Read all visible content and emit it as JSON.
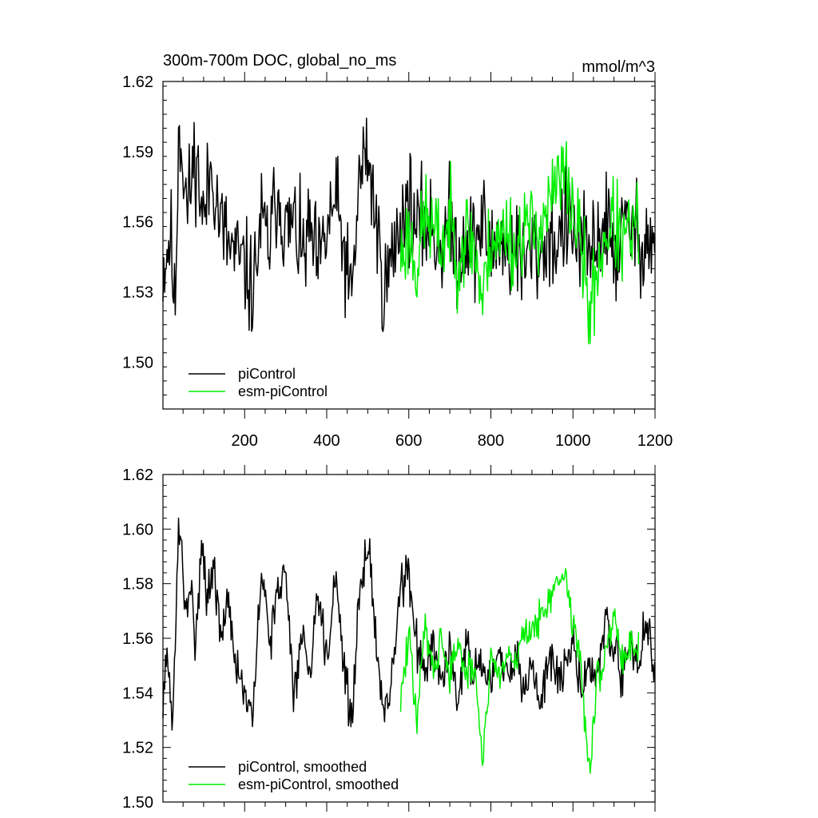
{
  "chart_data": [
    {
      "type": "line",
      "title": "300m-700m DOC, global_no_ms",
      "units": "mmol/m^3",
      "xlim": [
        1,
        1200
      ],
      "ylim": [
        1.48,
        1.62
      ],
      "xticks": [
        200,
        400,
        600,
        800,
        1000,
        1200
      ],
      "yticks": [
        1.5,
        1.53,
        1.56,
        1.59,
        1.62
      ],
      "ytick_labels": [
        "1.50",
        "1.53",
        "1.56",
        "1.59",
        "1.62"
      ],
      "show_xtick_labels": true,
      "legend": "bottom-left",
      "grid": false,
      "series": [
        {
          "name": "piControl",
          "color": "#000000",
          "x_start": 1,
          "x_end": 1200,
          "waypoints": [
            [
              1,
              1.54
            ],
            [
              20,
              1.555
            ],
            [
              30,
              1.518
            ],
            [
              40,
              1.605
            ],
            [
              50,
              1.585
            ],
            [
              60,
              1.565
            ],
            [
              80,
              1.59
            ],
            [
              100,
              1.56
            ],
            [
              120,
              1.585
            ],
            [
              140,
              1.56
            ],
            [
              160,
              1.55
            ],
            [
              180,
              1.545
            ],
            [
              200,
              1.54
            ],
            [
              220,
              1.53
            ],
            [
              240,
              1.56
            ],
            [
              260,
              1.55
            ],
            [
              280,
              1.575
            ],
            [
              300,
              1.555
            ],
            [
              320,
              1.56
            ],
            [
              340,
              1.545
            ],
            [
              360,
              1.555
            ],
            [
              380,
              1.54
            ],
            [
              400,
              1.555
            ],
            [
              420,
              1.57
            ],
            [
              440,
              1.55
            ],
            [
              460,
              1.525
            ],
            [
              480,
              1.58
            ],
            [
              500,
              1.59
            ],
            [
              520,
              1.56
            ],
            [
              540,
              1.53
            ],
            [
              560,
              1.545
            ],
            [
              580,
              1.56
            ],
            [
              600,
              1.57
            ],
            [
              620,
              1.555
            ],
            [
              640,
              1.56
            ],
            [
              660,
              1.555
            ],
            [
              680,
              1.55
            ],
            [
              700,
              1.56
            ],
            [
              720,
              1.545
            ],
            [
              740,
              1.555
            ],
            [
              760,
              1.55
            ],
            [
              780,
              1.56
            ],
            [
              800,
              1.545
            ],
            [
              820,
              1.555
            ],
            [
              840,
              1.545
            ],
            [
              860,
              1.55
            ],
            [
              880,
              1.54
            ],
            [
              900,
              1.55
            ],
            [
              920,
              1.545
            ],
            [
              940,
              1.555
            ],
            [
              960,
              1.55
            ],
            [
              980,
              1.56
            ],
            [
              1000,
              1.555
            ],
            [
              1020,
              1.55
            ],
            [
              1040,
              1.545
            ],
            [
              1060,
              1.555
            ],
            [
              1080,
              1.56
            ],
            [
              1100,
              1.545
            ],
            [
              1120,
              1.555
            ],
            [
              1140,
              1.56
            ],
            [
              1160,
              1.55
            ],
            [
              1180,
              1.555
            ],
            [
              1200,
              1.548
            ]
          ],
          "noise": 0.016,
          "seed": 11
        },
        {
          "name": "esm-piControl",
          "color": "#00ee00",
          "x_start": 580,
          "x_end": 1160,
          "waypoints": [
            [
              580,
              1.545
            ],
            [
              600,
              1.555
            ],
            [
              620,
              1.54
            ],
            [
              640,
              1.565
            ],
            [
              660,
              1.555
            ],
            [
              680,
              1.55
            ],
            [
              700,
              1.56
            ],
            [
              720,
              1.545
            ],
            [
              740,
              1.555
            ],
            [
              760,
              1.55
            ],
            [
              780,
              1.525
            ],
            [
              800,
              1.555
            ],
            [
              820,
              1.55
            ],
            [
              840,
              1.56
            ],
            [
              860,
              1.545
            ],
            [
              880,
              1.56
            ],
            [
              900,
              1.555
            ],
            [
              920,
              1.56
            ],
            [
              940,
              1.565
            ],
            [
              960,
              1.575
            ],
            [
              980,
              1.58
            ],
            [
              1000,
              1.565
            ],
            [
              1020,
              1.55
            ],
            [
              1040,
              1.52
            ],
            [
              1060,
              1.54
            ],
            [
              1080,
              1.555
            ],
            [
              1100,
              1.56
            ],
            [
              1120,
              1.55
            ],
            [
              1140,
              1.555
            ],
            [
              1160,
              1.558
            ]
          ],
          "noise": 0.014,
          "seed": 23
        }
      ]
    },
    {
      "type": "line",
      "title": "",
      "units": "",
      "xlim": [
        1,
        1200
      ],
      "ylim": [
        1.5,
        1.62
      ],
      "xticks": [
        200,
        400,
        600,
        800,
        1000,
        1200
      ],
      "yticks": [
        1.5,
        1.52,
        1.54,
        1.56,
        1.58,
        1.6,
        1.62
      ],
      "ytick_labels": [
        "1.50",
        "1.52",
        "1.54",
        "1.56",
        "1.58",
        "1.60",
        "1.62"
      ],
      "show_xtick_labels": false,
      "legend": "bottom-left",
      "grid": false,
      "series": [
        {
          "name": "piControl, smoothed",
          "color": "#000000",
          "x_start": 1,
          "x_end": 1200,
          "waypoints": [
            [
              1,
              1.54
            ],
            [
              10,
              1.552
            ],
            [
              25,
              1.53
            ],
            [
              40,
              1.605
            ],
            [
              55,
              1.568
            ],
            [
              70,
              1.578
            ],
            [
              80,
              1.56
            ],
            [
              95,
              1.595
            ],
            [
              110,
              1.575
            ],
            [
              125,
              1.585
            ],
            [
              140,
              1.56
            ],
            [
              160,
              1.575
            ],
            [
              180,
              1.55
            ],
            [
              200,
              1.54
            ],
            [
              220,
              1.528
            ],
            [
              240,
              1.585
            ],
            [
              260,
              1.56
            ],
            [
              280,
              1.575
            ],
            [
              300,
              1.585
            ],
            [
              320,
              1.54
            ],
            [
              340,
              1.56
            ],
            [
              360,
              1.55
            ],
            [
              380,
              1.58
            ],
            [
              400,
              1.55
            ],
            [
              420,
              1.585
            ],
            [
              440,
              1.555
            ],
            [
              460,
              1.527
            ],
            [
              480,
              1.575
            ],
            [
              500,
              1.597
            ],
            [
              520,
              1.56
            ],
            [
              540,
              1.53
            ],
            [
              560,
              1.545
            ],
            [
              580,
              1.58
            ],
            [
              600,
              1.585
            ],
            [
              620,
              1.555
            ],
            [
              640,
              1.55
            ],
            [
              660,
              1.56
            ],
            [
              680,
              1.545
            ],
            [
              700,
              1.555
            ],
            [
              720,
              1.54
            ],
            [
              740,
              1.56
            ],
            [
              760,
              1.545
            ],
            [
              780,
              1.55
            ],
            [
              800,
              1.54
            ],
            [
              820,
              1.555
            ],
            [
              840,
              1.545
            ],
            [
              860,
              1.555
            ],
            [
              880,
              1.54
            ],
            [
              900,
              1.55
            ],
            [
              920,
              1.535
            ],
            [
              940,
              1.555
            ],
            [
              960,
              1.545
            ],
            [
              980,
              1.55
            ],
            [
              1000,
              1.56
            ],
            [
              1020,
              1.54
            ],
            [
              1040,
              1.55
            ],
            [
              1060,
              1.545
            ],
            [
              1080,
              1.57
            ],
            [
              1100,
              1.555
            ],
            [
              1120,
              1.545
            ],
            [
              1140,
              1.56
            ],
            [
              1160,
              1.55
            ],
            [
              1180,
              1.57
            ],
            [
              1200,
              1.542
            ]
          ],
          "noise": 0.006,
          "seed": 31
        },
        {
          "name": "esm-piControl, smoothed",
          "color": "#00ee00",
          "x_start": 580,
          "x_end": 1160,
          "waypoints": [
            [
              580,
              1.538
            ],
            [
              600,
              1.56
            ],
            [
              620,
              1.53
            ],
            [
              640,
              1.565
            ],
            [
              660,
              1.55
            ],
            [
              680,
              1.56
            ],
            [
              700,
              1.545
            ],
            [
              720,
              1.56
            ],
            [
              740,
              1.545
            ],
            [
              760,
              1.55
            ],
            [
              780,
              1.515
            ],
            [
              800,
              1.555
            ],
            [
              820,
              1.545
            ],
            [
              840,
              1.555
            ],
            [
              860,
              1.55
            ],
            [
              880,
              1.565
            ],
            [
              900,
              1.56
            ],
            [
              920,
              1.57
            ],
            [
              940,
              1.575
            ],
            [
              960,
              1.578
            ],
            [
              980,
              1.585
            ],
            [
              1000,
              1.565
            ],
            [
              1020,
              1.55
            ],
            [
              1040,
              1.51
            ],
            [
              1060,
              1.545
            ],
            [
              1080,
              1.555
            ],
            [
              1100,
              1.57
            ],
            [
              1120,
              1.55
            ],
            [
              1140,
              1.56
            ],
            [
              1160,
              1.555
            ]
          ],
          "noise": 0.005,
          "seed": 47
        }
      ]
    }
  ]
}
